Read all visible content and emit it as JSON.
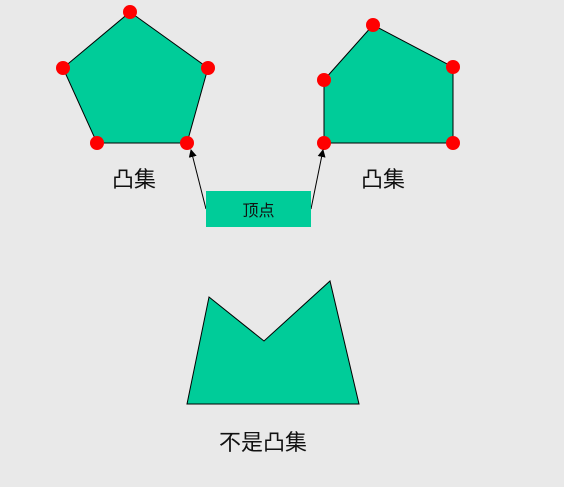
{
  "diagram": {
    "labels": {
      "left_convex": "凸集",
      "right_convex": "凸集",
      "vertex": "顶点",
      "not_convex": "不是凸集"
    },
    "colors": {
      "background": "#e9e9e9",
      "shape_fill": "#00cc99",
      "shape_stroke": "#000000",
      "vertex_dot": "#ff0000",
      "arrow": "#000000"
    }
  }
}
